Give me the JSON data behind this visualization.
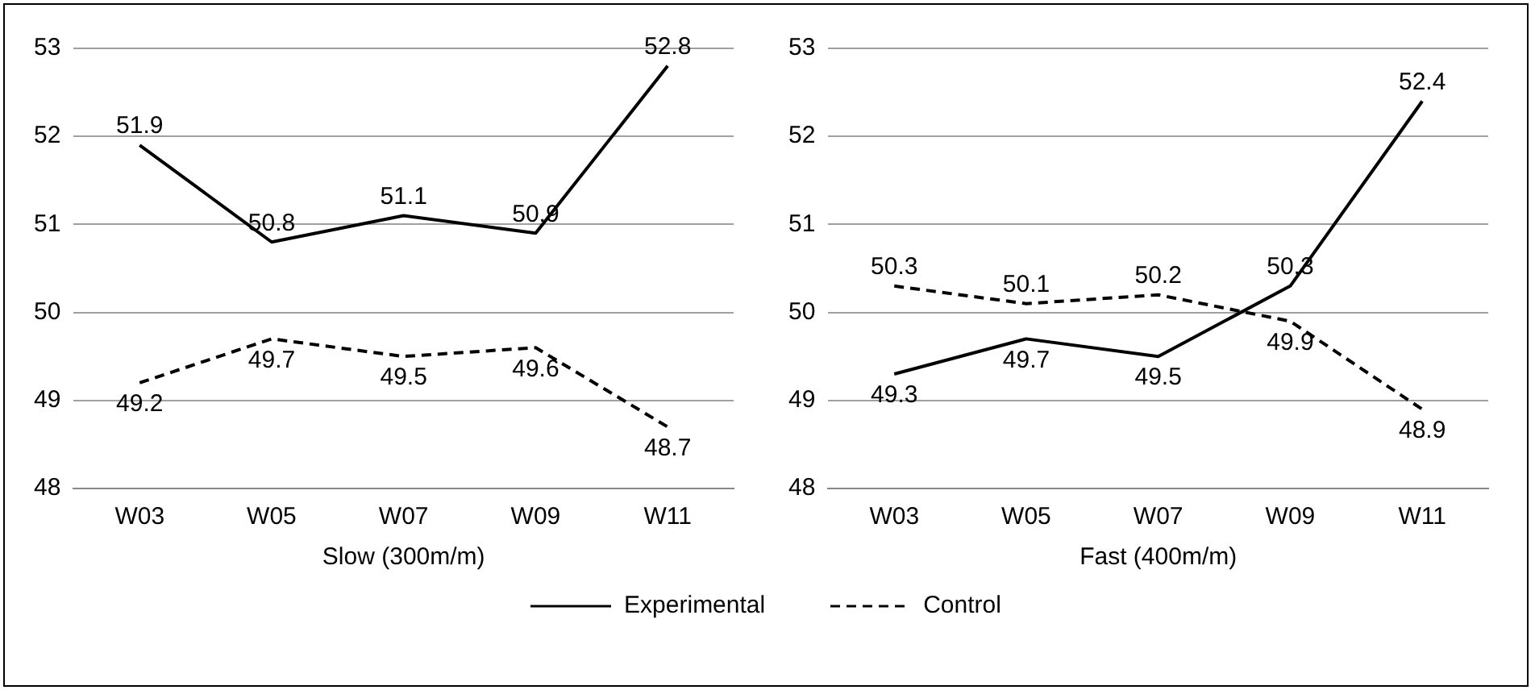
{
  "chart_data": [
    {
      "type": "line",
      "xlabel": "Slow (300m/m)",
      "categories": [
        "W03",
        "W05",
        "W07",
        "W09",
        "W11"
      ],
      "series": [
        {
          "name": "Experimental",
          "color": "#000000",
          "line_style": "solid",
          "values": [
            51.9,
            50.8,
            51.1,
            50.9,
            52.8
          ]
        },
        {
          "name": "Control",
          "color": "#000000",
          "line_style": "dashed",
          "values": [
            49.2,
            49.7,
            49.5,
            49.6,
            48.7
          ]
        }
      ],
      "ylim": [
        48,
        53
      ],
      "yticks": [
        48,
        49,
        50,
        51,
        52,
        53
      ],
      "grid": "y",
      "marker": "none",
      "data_labels": true,
      "legend": "bottom"
    },
    {
      "type": "line",
      "xlabel": "Fast (400m/m)",
      "categories": [
        "W03",
        "W05",
        "W07",
        "W09",
        "W11"
      ],
      "series": [
        {
          "color": "#000000",
          "line_style": "solid",
          "values": [
            49.3,
            49.7,
            49.5,
            50.3,
            52.4
          ]
        },
        {
          "color": "#000000",
          "line_style": "dashed",
          "values": [
            50.3,
            50.1,
            50.2,
            49.9,
            48.9
          ]
        }
      ],
      "ylim": [
        48,
        53
      ],
      "yticks": [
        48,
        49,
        50,
        51,
        52,
        53
      ],
      "grid": "y",
      "marker": "none",
      "data_labels": true
    }
  ]
}
